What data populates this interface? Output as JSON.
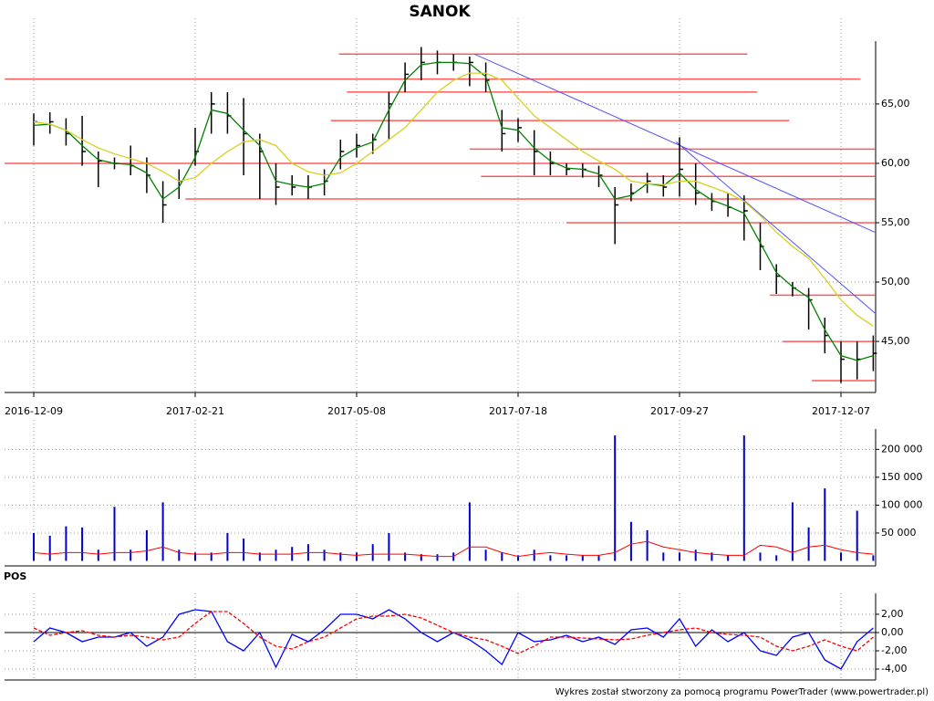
{
  "chart_data": [
    {
      "type": "ohlc",
      "title": "SANOK",
      "categories": [
        "2016-12-09",
        null,
        null,
        null,
        null,
        null,
        null,
        null,
        null,
        null,
        "2017-02-21",
        null,
        null,
        null,
        null,
        null,
        null,
        null,
        null,
        null,
        "2017-05-08",
        null,
        null,
        null,
        null,
        null,
        null,
        null,
        null,
        null,
        "2017-07-18",
        null,
        null,
        null,
        null,
        null,
        null,
        null,
        null,
        null,
        "2017-09-27",
        null,
        null,
        null,
        null,
        null,
        null,
        null,
        null,
        null,
        "2017-12-07",
        null,
        null
      ],
      "high": [
        64.2,
        64.3,
        63.8,
        64,
        61,
        60.5,
        61.5,
        60.5,
        58.5,
        59.5,
        63,
        66,
        66,
        65.5,
        62.5,
        60,
        59,
        59,
        59.5,
        62,
        62.5,
        62.5,
        66,
        68.5,
        69.8,
        69.5,
        69.2,
        69,
        68.5,
        64.5,
        63.8,
        62.8,
        61,
        60,
        60,
        59.8,
        58,
        58.3,
        59.2,
        59,
        62.2,
        60,
        57.5,
        57.5,
        57.3,
        55,
        51.5,
        50,
        49.5,
        47,
        45,
        45,
        45.5
      ],
      "low": [
        61.5,
        62.5,
        61.5,
        59.8,
        58,
        59.5,
        59,
        57.5,
        55,
        57,
        59.8,
        62.5,
        62.5,
        59,
        57,
        56.5,
        57.3,
        57,
        57.3,
        59.5,
        60.5,
        60.8,
        62,
        66,
        67,
        67.5,
        67.8,
        66.5,
        66,
        61,
        61.8,
        59,
        59,
        59,
        58.8,
        58,
        53.2,
        56.8,
        57.5,
        57.2,
        57.2,
        56.5,
        56,
        55.5,
        53.5,
        51,
        49,
        48.8,
        46,
        44,
        41.5,
        41.8,
        42.5
      ],
      "close": [
        63.5,
        63.5,
        62.5,
        61,
        60.2,
        60,
        59.8,
        59,
        56.5,
        58.5,
        61,
        65,
        64,
        62.5,
        61,
        58,
        58,
        58,
        58.5,
        61,
        61.5,
        62,
        65,
        67.5,
        68.5,
        68.5,
        68.5,
        68.5,
        67,
        62.5,
        63,
        61,
        60,
        59.5,
        59.5,
        59,
        56.5,
        57.5,
        58.5,
        58,
        59.5,
        57.5,
        56.8,
        56.3,
        56,
        53,
        50.5,
        49.5,
        48.5,
        45.5,
        43.5,
        43.5,
        44
      ],
      "color": "#000000",
      "ma": [
        {
          "color": "#008000",
          "values": [
            63.2,
            63.3,
            62.8,
            61.5,
            60.3,
            60,
            59.9,
            59.2,
            57,
            58,
            60.5,
            64.5,
            64.2,
            62.8,
            61.5,
            58.5,
            58.2,
            58,
            58.3,
            60.5,
            61.3,
            61.8,
            64.5,
            67,
            68.3,
            68.5,
            68.5,
            68.4,
            67.3,
            63,
            62.8,
            61.3,
            60.2,
            59.6,
            59.5,
            59.1,
            57,
            57.3,
            58.3,
            58.1,
            59.2,
            57.8,
            56.9,
            56.4,
            55.8,
            53.3,
            50.8,
            49.6,
            48.7,
            46,
            43.8,
            43.4,
            43.8
          ]
        },
        {
          "color": "#d8d020",
          "values": [
            63.5,
            63.3,
            62.8,
            62,
            61.3,
            60.8,
            60.4,
            60,
            59.3,
            58.5,
            58.8,
            60,
            61,
            61.8,
            62,
            61.5,
            60,
            59.3,
            59,
            59.2,
            60,
            61,
            62,
            63,
            64.5,
            66,
            67,
            67.6,
            67.6,
            67,
            65.5,
            64,
            63,
            62,
            61,
            60.2,
            59.5,
            58.5,
            58.3,
            58.2,
            58.5,
            58.5,
            58,
            57.5,
            56.8,
            55.6,
            54.2,
            53,
            52,
            50.3,
            48.5,
            47.2,
            46.3
          ]
        }
      ],
      "levels": [
        {
          "value": 69.2,
          "from": 18.9,
          "to": 44.2
        },
        {
          "value": 67.1,
          "from": -1.8,
          "to": 51.2
        },
        {
          "value": 66,
          "from": 19.4,
          "to": 44.8
        },
        {
          "value": 63.6,
          "from": 18.4,
          "to": 46.8
        },
        {
          "value": 61.2,
          "from": 27,
          "to": 52.1
        },
        {
          "value": 60,
          "from": -1.8,
          "to": 52.1
        },
        {
          "value": 58.9,
          "from": 27.7,
          "to": 52.1
        },
        {
          "value": 57,
          "from": 9.4,
          "to": 52.1
        },
        {
          "value": 55,
          "from": 33,
          "to": 52.1
        },
        {
          "value": 48.9,
          "from": 45.6,
          "to": 52.1
        },
        {
          "value": 45,
          "from": 46.4,
          "to": 52.1
        },
        {
          "value": 41.7,
          "from": 48.2,
          "to": 52.1
        }
      ],
      "level_color": "#ff5a5a",
      "trendlines": [
        {
          "x": [
            27.3,
            52.1
          ],
          "y": [
            69.2,
            54.2
          ]
        },
        {
          "x": [
            39.8,
            52.1
          ],
          "y": [
            61.8,
            47.4
          ]
        }
      ],
      "trend_color": "#5050ff",
      "ylim": [
        40.7,
        70.3
      ],
      "yticks": [
        {
          "value": 45,
          "label": "45,00"
        },
        {
          "value": 50,
          "label": "50,00"
        },
        {
          "value": 55,
          "label": "55,00"
        },
        {
          "value": 60,
          "label": "60,00"
        },
        {
          "value": 65,
          "label": "65,00"
        }
      ],
      "grid": true
    },
    {
      "type": "bar",
      "values": [
        50000,
        45000,
        62000,
        60000,
        20000,
        97000,
        20000,
        55000,
        105000,
        20000,
        15000,
        15000,
        50000,
        40000,
        15000,
        20000,
        25000,
        30000,
        20000,
        15000,
        15000,
        30000,
        50000,
        15000,
        12000,
        12000,
        15000,
        105000,
        20000,
        15000,
        10000,
        20000,
        10000,
        10000,
        10000,
        10000,
        225000,
        70000,
        55000,
        15000,
        15000,
        20000,
        15000,
        10000,
        225000,
        15000,
        10000,
        105000,
        60000,
        130000,
        15000,
        90000,
        10000
      ],
      "color": "#0000cc",
      "average": {
        "color": "#ff0000",
        "values": [
          15000,
          12000,
          15000,
          15000,
          12000,
          15000,
          15000,
          18000,
          25000,
          15000,
          12000,
          12000,
          15000,
          15000,
          12000,
          12000,
          12000,
          15000,
          15000,
          12000,
          10000,
          12000,
          12000,
          12000,
          10000,
          8000,
          8000,
          25000,
          25000,
          15000,
          8000,
          12000,
          15000,
          12000,
          10000,
          10000,
          15000,
          30000,
          35000,
          25000,
          20000,
          15000,
          12000,
          10000,
          10000,
          28000,
          25000,
          15000,
          25000,
          28000,
          20000,
          15000,
          12000
        ]
      },
      "ylim": [
        0,
        230000
      ],
      "yticks": [
        {
          "value": 50000,
          "label": "50 000"
        },
        {
          "value": 100000,
          "label": "100 000"
        },
        {
          "value": 150000,
          "label": "150 000"
        },
        {
          "value": 200000,
          "label": "200 000"
        }
      ],
      "grid": true
    },
    {
      "type": "line",
      "title": "POS",
      "series": [
        {
          "color": "#0000ff",
          "dashed": false,
          "values": [
            -1,
            0.5,
            0,
            -1,
            -0.5,
            -0.5,
            0,
            -1.5,
            -0.5,
            2,
            2.5,
            2.3,
            -1,
            -2,
            0,
            -3.8,
            -0.2,
            -1,
            0.3,
            2,
            2,
            1.5,
            2.5,
            1.5,
            0,
            -1,
            0,
            -0.8,
            -2,
            -3.5,
            0,
            -1,
            -0.8,
            -0.3,
            -1,
            -0.5,
            -1.3,
            0.3,
            0.5,
            -0.5,
            1.5,
            -1.5,
            0.3,
            -1,
            0,
            -2,
            -2.5,
            -0.5,
            0,
            -3,
            -4,
            -1,
            0.5
          ]
        },
        {
          "color": "#ff0000",
          "dashed": true,
          "values": [
            0.5,
            -0.3,
            0,
            0.2,
            -0.3,
            -0.5,
            -0.3,
            -0.5,
            -0.8,
            -0.5,
            1,
            2.3,
            2.3,
            1,
            -0.5,
            -1.5,
            -1.8,
            -1,
            -0.5,
            0.5,
            1.5,
            1.8,
            1.8,
            2,
            1.6,
            0.8,
            0,
            -0.5,
            -0.8,
            -1.5,
            -2.3,
            -1.5,
            -0.5,
            -0.5,
            -0.6,
            -0.7,
            -0.8,
            -0.7,
            -0.3,
            0,
            0.3,
            0.5,
            0,
            -0.2,
            -0.3,
            -0.5,
            -1.5,
            -2,
            -1.5,
            -0.8,
            -1.5,
            -2,
            -0.5
          ]
        }
      ],
      "zero_line": 0,
      "ylim": [
        -5.2,
        4.3
      ],
      "yticks": [
        {
          "value": -4,
          "label": "-4,00"
        },
        {
          "value": -2,
          "label": "-2,00"
        },
        {
          "value": 0,
          "label": "0,00"
        },
        {
          "value": 2,
          "label": "2,00"
        }
      ],
      "grid": true
    }
  ],
  "footer": "Wykres został stworzony za pomocą programu PowerTrader (www.powertrader.pl)"
}
